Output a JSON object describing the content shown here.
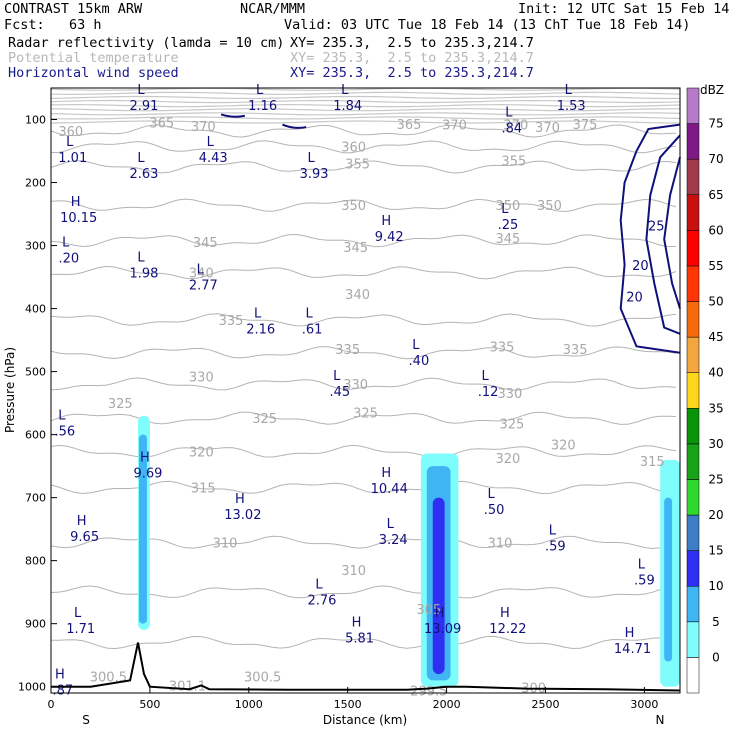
{
  "header": {
    "title": "CONTRAST 15km ARW",
    "org": "NCAR/MMM",
    "init": "Init: 12 UTC Sat 15 Feb 14",
    "fcst": "Fcst:   63 h",
    "valid": "Valid: 03 UTC Tue 18 Feb 14 (13 ChT Tue 18 Feb 14)",
    "fields": [
      {
        "name": "Radar reflectivity (lamda = 10 cm)",
        "xy": "XY= 235.3,  2.5 to 235.3,214.7",
        "style": "normal"
      },
      {
        "name": "Potential temperature",
        "xy": "XY= 235.3,  2.5 to 235.3,214.7",
        "style": "gray"
      },
      {
        "name": "Horizontal wind speed",
        "xy": "XY= 235.3,  2.5 to 235.3,214.7",
        "style": "blue"
      }
    ]
  },
  "chart_data": {
    "type": "cross-section",
    "xlabel": "Distance (km)",
    "ylabel": "Pressure (hPa)",
    "xlim": [
      0,
      3180
    ],
    "ylim": [
      1010,
      50
    ],
    "xticks": [
      0,
      500,
      1000,
      1500,
      2000,
      2500,
      3000
    ],
    "yticks": [
      100,
      200,
      300,
      400,
      500,
      600,
      700,
      800,
      900,
      1000
    ],
    "endpoints": {
      "left": "S",
      "right": "N"
    },
    "colorbar": {
      "unit": "dBZ",
      "levels": [
        "0",
        "5",
        "10",
        "15",
        "20",
        "25",
        "30",
        "35",
        "40",
        "45",
        "50",
        "55",
        "60",
        "65",
        "70",
        "75"
      ],
      "colors": [
        "#ffffff",
        "#7ffcfc",
        "#3fb5f4",
        "#2f2ff4",
        "#3d7dc5",
        "#2fd72f",
        "#17a217",
        "#099409",
        "#fdd51a",
        "#f3a540",
        "#f56a0d",
        "#ff3506",
        "#ff0000",
        "#c91010",
        "#a03a4b",
        "#7d1a86",
        "#b67ac8"
      ]
    },
    "theta_labels": [
      {
        "v": "360",
        "x": 100,
        "p": 118
      },
      {
        "v": "365",
        "x": 560,
        "p": 105
      },
      {
        "v": "370",
        "x": 770,
        "p": 110
      },
      {
        "v": "365",
        "x": 1810,
        "p": 107
      },
      {
        "v": "370",
        "x": 2040,
        "p": 108
      },
      {
        "v": "370",
        "x": 2350,
        "p": 108
      },
      {
        "v": "375",
        "x": 2700,
        "p": 107
      },
      {
        "v": "370",
        "x": 2510,
        "p": 112
      },
      {
        "v": "360",
        "x": 1530,
        "p": 143
      },
      {
        "v": "355",
        "x": 1550,
        "p": 170
      },
      {
        "v": "355",
        "x": 2340,
        "p": 165
      },
      {
        "v": "350",
        "x": 1530,
        "p": 236
      },
      {
        "v": "350",
        "x": 2310,
        "p": 236
      },
      {
        "v": "350",
        "x": 2520,
        "p": 236
      },
      {
        "v": "345",
        "x": 780,
        "p": 294
      },
      {
        "v": "345",
        "x": 1540,
        "p": 302
      },
      {
        "v": "345",
        "x": 2310,
        "p": 288
      },
      {
        "v": "340",
        "x": 760,
        "p": 343
      },
      {
        "v": "340",
        "x": 1550,
        "p": 377
      },
      {
        "v": "335",
        "x": 910,
        "p": 418
      },
      {
        "v": "335",
        "x": 1500,
        "p": 464
      },
      {
        "v": "335",
        "x": 2280,
        "p": 460
      },
      {
        "v": "335",
        "x": 2650,
        "p": 464
      },
      {
        "v": "330",
        "x": 760,
        "p": 508
      },
      {
        "v": "330",
        "x": 1540,
        "p": 520
      },
      {
        "v": "330",
        "x": 2320,
        "p": 534
      },
      {
        "v": "325",
        "x": 350,
        "p": 550
      },
      {
        "v": "325",
        "x": 1080,
        "p": 574
      },
      {
        "v": "325",
        "x": 1590,
        "p": 565
      },
      {
        "v": "325",
        "x": 2330,
        "p": 582
      },
      {
        "v": "320",
        "x": 760,
        "p": 627
      },
      {
        "v": "320",
        "x": 2310,
        "p": 637
      },
      {
        "v": "320",
        "x": 2590,
        "p": 616
      },
      {
        "v": "315",
        "x": 770,
        "p": 684
      },
      {
        "v": "315",
        "x": 3040,
        "p": 642
      },
      {
        "v": "310",
        "x": 880,
        "p": 771
      },
      {
        "v": "310",
        "x": 1530,
        "p": 815
      },
      {
        "v": "310",
        "x": 2270,
        "p": 771
      },
      {
        "v": "305",
        "x": 1910,
        "p": 877
      },
      {
        "v": "300.5",
        "x": 290,
        "p": 984
      },
      {
        "v": "301.1",
        "x": 690,
        "p": 998
      },
      {
        "v": "300.5",
        "x": 1070,
        "p": 984
      },
      {
        "v": "299.5",
        "x": 1910,
        "p": 1006
      },
      {
        "v": "300",
        "x": 2440,
        "p": 1001
      }
    ],
    "wind_labels": [
      {
        "v": "25",
        "x": 3060,
        "p": 268
      },
      {
        "v": "20",
        "x": 2980,
        "p": 331
      },
      {
        "v": "20",
        "x": 2950,
        "p": 381
      }
    ],
    "extrema": [
      {
        "t": "L",
        "v": "2.91",
        "x": 470,
        "p": 72
      },
      {
        "t": "L",
        "v": "1.16",
        "x": 1070,
        "p": 72
      },
      {
        "t": "L",
        "v": "1.84",
        "x": 1500,
        "p": 72
      },
      {
        "t": "L",
        "v": "1.53",
        "x": 2630,
        "p": 72
      },
      {
        "t": "L",
        "v": ".84",
        "x": 2330,
        "p": 108
      },
      {
        "t": "L",
        "v": "1.01",
        "x": 110,
        "p": 155
      },
      {
        "t": "L",
        "v": "4.43",
        "x": 820,
        "p": 155
      },
      {
        "t": "L",
        "v": "2.63",
        "x": 470,
        "p": 180
      },
      {
        "t": "L",
        "v": "3.93",
        "x": 1330,
        "p": 180
      },
      {
        "t": "H",
        "v": "10.15",
        "x": 140,
        "p": 250
      },
      {
        "t": "H",
        "v": "9.42",
        "x": 1710,
        "p": 280
      },
      {
        "t": "L",
        "v": ".25",
        "x": 2310,
        "p": 261
      },
      {
        "t": "L",
        "v": ".20",
        "x": 90,
        "p": 314
      },
      {
        "t": "L",
        "v": "1.98",
        "x": 470,
        "p": 338
      },
      {
        "t": "L",
        "v": "2.77",
        "x": 770,
        "p": 357
      },
      {
        "t": "L",
        "v": "2.16",
        "x": 1060,
        "p": 427
      },
      {
        "t": "L",
        "v": ".61",
        "x": 1320,
        "p": 427
      },
      {
        "t": "L",
        "v": ".40",
        "x": 1860,
        "p": 477
      },
      {
        "t": "L",
        "v": ".45",
        "x": 1460,
        "p": 526
      },
      {
        "t": "L",
        "v": ".12",
        "x": 2210,
        "p": 526
      },
      {
        "t": "L",
        "v": ".56",
        "x": 70,
        "p": 589
      },
      {
        "t": "H",
        "v": "9.69",
        "x": 490,
        "p": 655
      },
      {
        "t": "H",
        "v": "10.44",
        "x": 1710,
        "p": 680
      },
      {
        "t": "H",
        "v": "13.02",
        "x": 970,
        "p": 721
      },
      {
        "t": "L",
        "v": ".50",
        "x": 2240,
        "p": 713
      },
      {
        "t": "H",
        "v": "9.65",
        "x": 170,
        "p": 756
      },
      {
        "t": "L",
        "v": "3.24",
        "x": 1730,
        "p": 761
      },
      {
        "t": "L",
        "v": ".59",
        "x": 2550,
        "p": 771
      },
      {
        "t": "L",
        "v": ".59",
        "x": 3000,
        "p": 825
      },
      {
        "t": "L",
        "v": "2.76",
        "x": 1370,
        "p": 857
      },
      {
        "t": "L",
        "v": "1.71",
        "x": 150,
        "p": 902
      },
      {
        "t": "H",
        "v": "5.81",
        "x": 1560,
        "p": 917
      },
      {
        "t": "H",
        "v": "13.09",
        "x": 1980,
        "p": 902
      },
      {
        "t": "H",
        "v": "12.22",
        "x": 2310,
        "p": 902
      },
      {
        "t": "H",
        "v": "14.71",
        "x": 2940,
        "p": 934
      },
      {
        "t": "H",
        "v": ".87",
        "x": 60,
        "p": 1000
      }
    ],
    "terrain": [
      [
        0,
        1000
      ],
      [
        200,
        1000
      ],
      [
        400,
        990
      ],
      [
        440,
        930
      ],
      [
        470,
        980
      ],
      [
        500,
        1000
      ],
      [
        700,
        1004
      ],
      [
        760,
        998
      ],
      [
        800,
        1004
      ],
      [
        1200,
        1005
      ],
      [
        1800,
        1005
      ],
      [
        1900,
        1003
      ],
      [
        2000,
        1000
      ],
      [
        2100,
        1000
      ],
      [
        2400,
        1003
      ],
      [
        2800,
        1004
      ],
      [
        3180,
        1006
      ]
    ],
    "reflectivity": [
      {
        "band": 1,
        "x0": 440,
        "x1": 500,
        "ptop": 570,
        "pbot": 910
      },
      {
        "band": 2,
        "x0": 445,
        "x1": 485,
        "ptop": 600,
        "pbot": 900
      },
      {
        "band": 1,
        "x0": 1870,
        "x1": 2060,
        "ptop": 630,
        "pbot": 1000
      },
      {
        "band": 2,
        "x0": 1900,
        "x1": 2020,
        "ptop": 650,
        "pbot": 990
      },
      {
        "band": 3,
        "x0": 1930,
        "x1": 1990,
        "ptop": 700,
        "pbot": 980
      },
      {
        "band": 1,
        "x0": 3080,
        "x1": 3180,
        "ptop": 640,
        "pbot": 1000
      },
      {
        "band": 2,
        "x0": 3100,
        "x1": 3140,
        "ptop": 700,
        "pbot": 960
      }
    ]
  }
}
